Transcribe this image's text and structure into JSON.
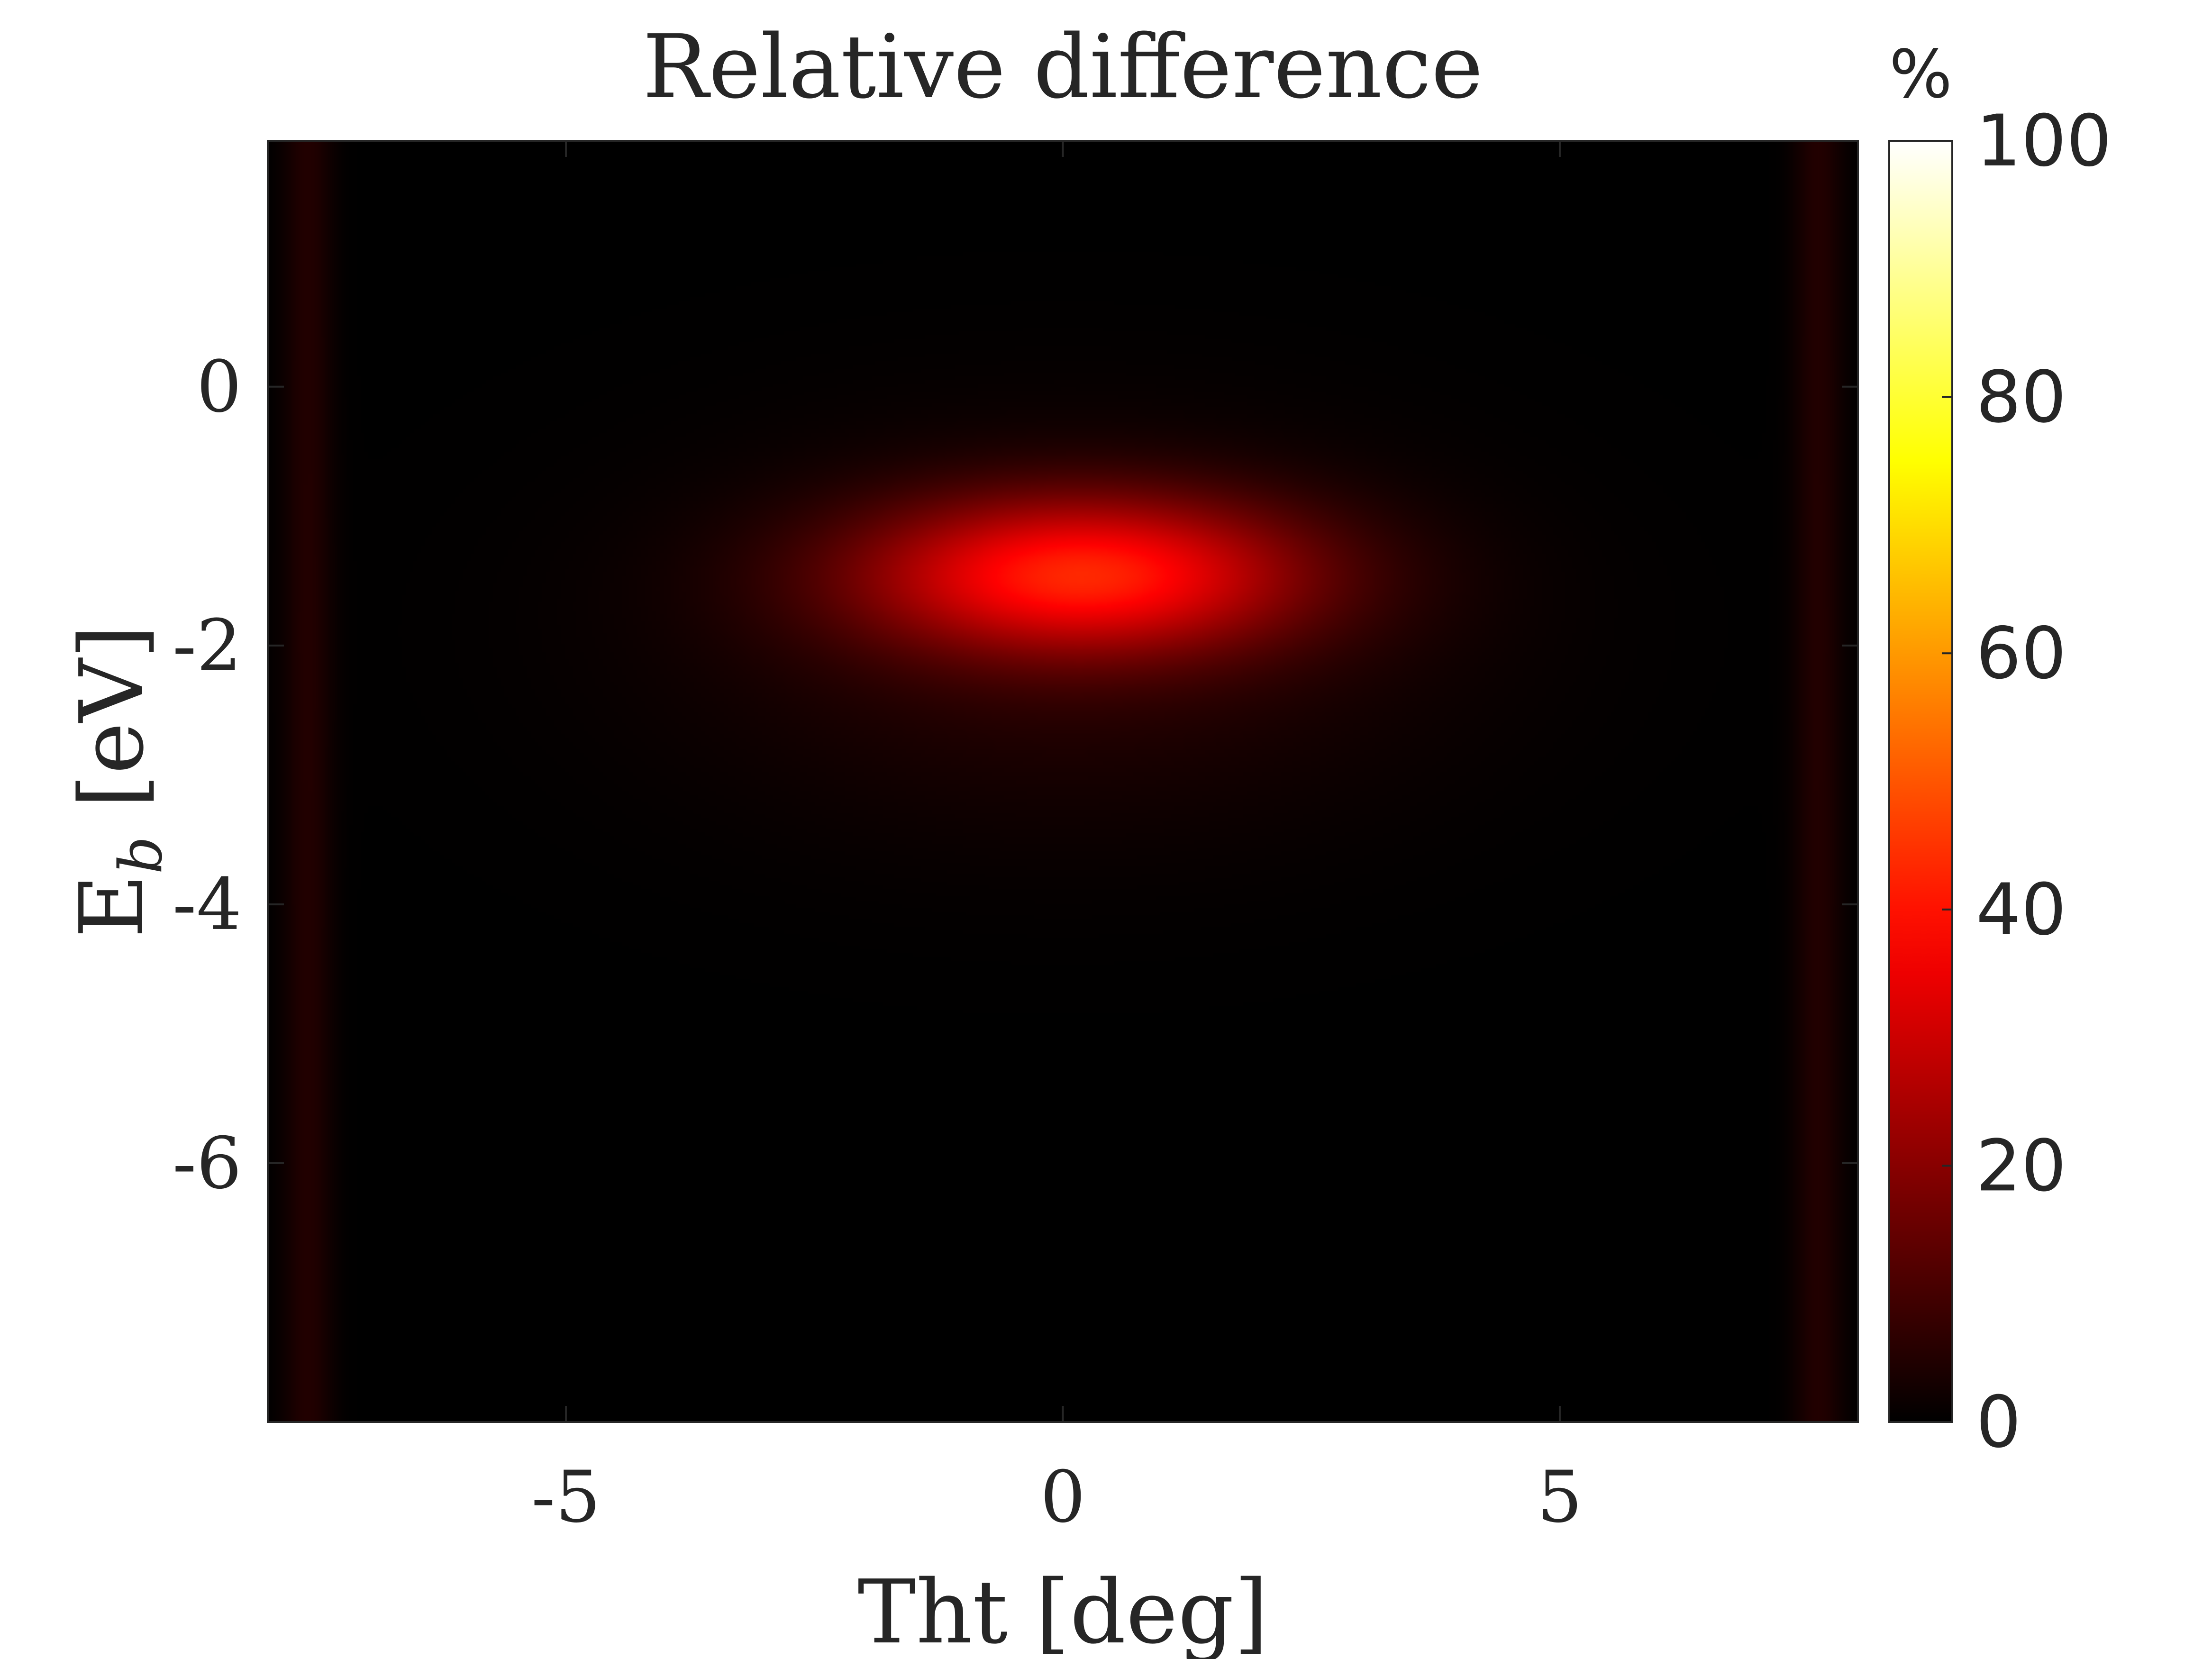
{
  "chart_data": {
    "type": "heatmap",
    "title": "Relative difference",
    "xlabel": "Tht [deg]",
    "ylabel_main": "E",
    "ylabel_sub": "b",
    "ylabel_unit": " [eV]",
    "xlim": [
      -8,
      8
    ],
    "ylim": [
      -8.0,
      1.9
    ],
    "x_ticks": [
      {
        "value": -5,
        "label": "-5"
      },
      {
        "value": 0,
        "label": "0"
      },
      {
        "value": 5,
        "label": "5"
      }
    ],
    "y_ticks": [
      {
        "value": 0,
        "label": "0"
      },
      {
        "value": -2,
        "label": "-2"
      },
      {
        "value": -4,
        "label": "-4"
      },
      {
        "value": -6,
        "label": "-6"
      }
    ],
    "colorbar": {
      "unit_label": "%",
      "range": [
        0,
        100
      ],
      "colormap": "hot",
      "ticks": [
        {
          "value": 0,
          "label": "0"
        },
        {
          "value": 20,
          "label": "20"
        },
        {
          "value": 40,
          "label": "40"
        },
        {
          "value": 60,
          "label": "60"
        },
        {
          "value": 80,
          "label": "80"
        },
        {
          "value": 100,
          "label": "100"
        }
      ]
    },
    "features": [
      {
        "center_x": 0.2,
        "center_y": -1.45,
        "peak": 38,
        "sigma_x": 1.55,
        "sigma_y": 0.42
      },
      {
        "center_x": 0.0,
        "center_y": -1.9,
        "peak": 6,
        "sigma_x": 2.6,
        "sigma_y": 1.0
      }
    ],
    "edge_glow": {
      "left_x": -7.6,
      "right_x": 7.6,
      "peak": 5
    },
    "colors": {
      "background": "#000000",
      "peak": "#ff0000",
      "axis": "#262626"
    }
  }
}
